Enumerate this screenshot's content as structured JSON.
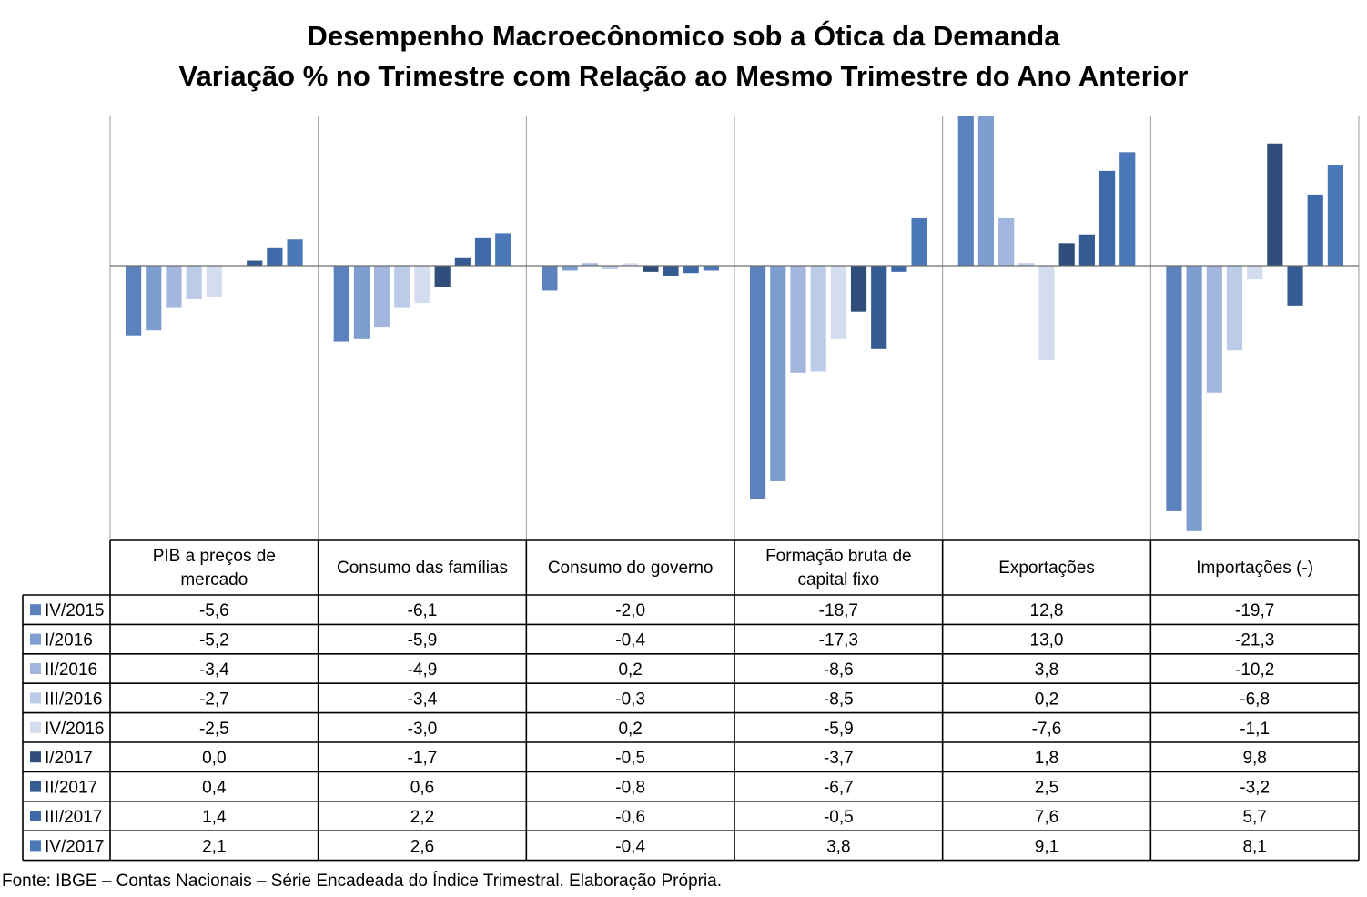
{
  "title": "Desempenho Macroecônomico sob a Ótica da Demanda",
  "subtitle": "Variação % no Trimestre com Relação ao Mesmo Trimestre do Ano Anterior",
  "source": "Fonte: IBGE – Contas Nacionais – Série Encadeada do Índice Trimestral. Elaboração Própria.",
  "chart_data": {
    "type": "bar",
    "categories": [
      "PIB a preços de mercado",
      "Consumo das famílias",
      "Consumo do governo",
      "Formação bruta de capital fixo",
      "Exportações",
      "Importações (-)"
    ],
    "category_lines": [
      [
        "PIB a preços de",
        "mercado"
      ],
      [
        "Consumo das famílias"
      ],
      [
        "Consumo do governo"
      ],
      [
        "Formação bruta de",
        "capital fixo"
      ],
      [
        "Exportações"
      ],
      [
        "Importações (-)"
      ]
    ],
    "series": [
      {
        "name": "IV/2015",
        "color": "#5b82bd",
        "values": [
          -5.6,
          -6.1,
          -2.0,
          -18.7,
          12.8,
          -19.7
        ],
        "labels": [
          "-5,6",
          "-6,1",
          "-2,0",
          "-18,7",
          "12,8",
          "-19,7"
        ]
      },
      {
        "name": "I/2016",
        "color": "#7f9ed0",
        "values": [
          -5.2,
          -5.9,
          -0.4,
          -17.3,
          13.0,
          -21.3
        ],
        "labels": [
          "-5,2",
          "-5,9",
          "-0,4",
          "-17,3",
          "13,0",
          "-21,3"
        ]
      },
      {
        "name": "II/2016",
        "color": "#a3b7de",
        "values": [
          -3.4,
          -4.9,
          0.2,
          -8.6,
          3.8,
          -10.2
        ],
        "labels": [
          "-3,4",
          "-4,9",
          "0,2",
          "-8,6",
          "3,8",
          "-10,2"
        ]
      },
      {
        "name": "III/2016",
        "color": "#bccbe7",
        "values": [
          -2.7,
          -3.4,
          -0.3,
          -8.5,
          0.2,
          -6.8
        ],
        "labels": [
          "-2,7",
          "-3,4",
          "-0,3",
          "-8,5",
          "0,2",
          "-6,8"
        ]
      },
      {
        "name": "IV/2016",
        "color": "#d3ddef",
        "values": [
          -2.5,
          -3.0,
          0.2,
          -5.9,
          -7.6,
          -1.1
        ],
        "labels": [
          "-2,5",
          "-3,0",
          "0,2",
          "-5,9",
          "-7,6",
          "-1,1"
        ]
      },
      {
        "name": "I/2017",
        "color": "#2e4d7a",
        "values": [
          0.0,
          -1.7,
          -0.5,
          -3.7,
          1.8,
          9.8
        ],
        "labels": [
          "0,0",
          "-1,7",
          "-0,5",
          "-3,7",
          "1,8",
          "9,8"
        ]
      },
      {
        "name": "II/2017",
        "color": "#345c92",
        "values": [
          0.4,
          0.6,
          -0.8,
          -6.7,
          2.5,
          -3.2
        ],
        "labels": [
          "0,4",
          "0,6",
          "-0,8",
          "-6,7",
          "2,5",
          "-3,2"
        ]
      },
      {
        "name": "III/2017",
        "color": "#3f6aa9",
        "values": [
          1.4,
          2.2,
          -0.6,
          -0.5,
          7.6,
          5.7
        ],
        "labels": [
          "1,4",
          "2,2",
          "-0,6",
          "-0,5",
          "7,6",
          "5,7"
        ]
      },
      {
        "name": "IV/2017",
        "color": "#4a78b8",
        "values": [
          2.1,
          2.6,
          -0.4,
          3.8,
          9.1,
          8.1
        ],
        "labels": [
          "2,1",
          "2,6",
          "-0,4",
          "3,8",
          "9,1",
          "8,1"
        ]
      }
    ],
    "ylim": [
      -22,
      12.2
    ],
    "grid": false,
    "legend": "data-table-left"
  }
}
